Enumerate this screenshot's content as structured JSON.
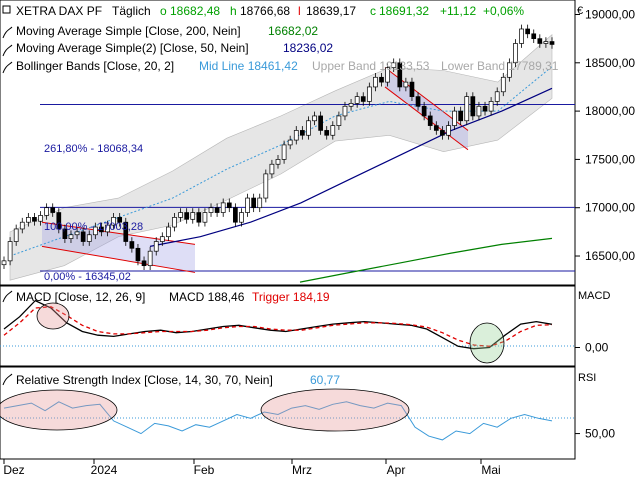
{
  "header": {
    "symbol": "XETRA DAX PF",
    "interval": "Täglich",
    "ohlc": [
      {
        "label": "o",
        "value": "18682,48"
      },
      {
        "label": "h",
        "value": "18766,68"
      },
      {
        "label": "l",
        "value": "18639,17"
      },
      {
        "label": "c",
        "value": "18691,32"
      }
    ],
    "change": "+11,12",
    "change_pct": "+0,06%",
    "currency": "€"
  },
  "legend": {
    "sma200": {
      "label": "Moving Average Simple [Close, 200, Nein]",
      "value": "16682,02"
    },
    "sma50": {
      "label": "Moving Average Simple(2) [Close, 50, Nein]",
      "value": "18236,02"
    },
    "bollinger": {
      "label": "Bollinger Bands [Close, 20, 2]",
      "mid": "Mid Line 18461,42",
      "upper": "Upper Band 19133,53",
      "lower": "Lower Band 17789,31"
    }
  },
  "annotations": {
    "fib_261": "261,80% - 18068,34",
    "fib_100": "100,00% - 17003,28",
    "fib_0": "0,00% - 16345,02"
  },
  "macd_panel": {
    "title": "MACD [Close, 12, 26, 9]",
    "macd_value": "MACD 188,46",
    "trigger_value": "Trigger 184,19",
    "axis_label": "MACD"
  },
  "rsi_panel": {
    "title": "Relative Strength Index [Close, 14, 30, 70, Nein]",
    "value": "60,77",
    "axis_label": "RSI"
  },
  "x_axis": {
    "ticks": [
      "Dez",
      "2024",
      "Feb",
      "Mrz",
      "Apr",
      "Mai"
    ]
  },
  "colors": {
    "up": "#00a000",
    "down": "#e00000",
    "sma200": "#008000",
    "sma50": "#000080",
    "mid": "#3a9ad9",
    "band": "#e6e6e6",
    "hline": "#1a1aa0",
    "macd": "#000000",
    "trigger": "#e00000"
  },
  "chart_data": [
    {
      "type": "candlestick",
      "title": "XETRA DAX PF",
      "ylim": [
        16200,
        19150
      ],
      "yticks": [
        16500,
        17000,
        17500,
        18000,
        18500,
        19000
      ],
      "ytick_labels": [
        "16500,00",
        "17000,00",
        "17500,00",
        "18000,00",
        "18500,00",
        "19000,00"
      ],
      "close": [
        16450,
        16650,
        16780,
        16850,
        16900,
        16860,
        16920,
        17000,
        16950,
        16780,
        16680,
        16720,
        16750,
        16650,
        16720,
        16800,
        16750,
        16820,
        16900,
        16850,
        16650,
        16580,
        16450,
        16400,
        16550,
        16650,
        16700,
        16800,
        16900,
        16950,
        16880,
        16950,
        16850,
        16950,
        17000,
        16950,
        17050,
        17000,
        16850,
        16950,
        17100,
        17000,
        17100,
        17350,
        17450,
        17500,
        17650,
        17700,
        17800,
        17750,
        17900,
        17950,
        17800,
        17750,
        17850,
        17950,
        18050,
        18080,
        18150,
        18100,
        18250,
        18350,
        18300,
        18450,
        18500,
        18250,
        18300,
        18150,
        18050,
        17950,
        17850,
        17800,
        17750,
        17850,
        18000,
        17900,
        18150,
        17950,
        18050,
        18000,
        18100,
        18200,
        18350,
        18500,
        18700,
        18850,
        18800,
        18750,
        18700,
        18720,
        18690
      ],
      "hlines": [
        18068.34,
        17003.28,
        16345.02
      ],
      "sma200": [
        16230,
        16330,
        16430,
        16530,
        16620,
        16682
      ],
      "sma50": [
        16600,
        16700,
        16850,
        17050,
        17300,
        17550,
        17800,
        18000,
        18236
      ],
      "bollinger_mid": [
        16500,
        16700,
        16900,
        17100,
        17400,
        17650,
        17950,
        18100,
        18000,
        18000,
        18461
      ],
      "channels": [
        {
          "from_value": 16850,
          "to_value": 16620,
          "from_lower": 16600,
          "to_lower": 16330
        },
        {
          "from_value": 18450,
          "to_value": 17800,
          "from_lower": 18250,
          "to_lower": 17600
        }
      ]
    },
    {
      "type": "line",
      "title": "MACD [Close, 12, 26, 9]",
      "ylim": [
        -150,
        450
      ],
      "yticks": [
        0
      ],
      "ytick_labels": [
        "0,00"
      ],
      "series": [
        {
          "name": "MACD",
          "values": [
            150,
            250,
            380,
            320,
            200,
            130,
            100,
            90,
            110,
            130,
            140,
            120,
            130,
            150,
            170,
            180,
            160,
            140,
            130,
            150,
            170,
            190,
            200,
            210,
            200,
            190,
            180,
            150,
            80,
            10,
            -10,
            0,
            100,
            190,
            210,
            188
          ]
        },
        {
          "name": "Trigger",
          "values": [
            100,
            200,
            320,
            330,
            260,
            180,
            130,
            110,
            110,
            120,
            130,
            130,
            130,
            140,
            160,
            170,
            170,
            150,
            140,
            140,
            160,
            180,
            190,
            200,
            200,
            195,
            185,
            165,
            120,
            60,
            20,
            10,
            50,
            130,
            180,
            184
          ]
        }
      ]
    },
    {
      "type": "line",
      "title": "Relative Strength Index [Close, 14, 30, 70, Nein]",
      "ylim": [
        30,
        100
      ],
      "yticks": [
        50
      ],
      "ytick_labels": [
        "50,00"
      ],
      "series": [
        {
          "name": "RSI",
          "values": [
            70,
            72,
            74,
            68,
            75,
            70,
            72,
            73,
            60,
            55,
            50,
            58,
            56,
            52,
            57,
            55,
            60,
            65,
            62,
            67,
            65,
            70,
            72,
            69,
            73,
            75,
            72,
            70,
            74,
            72,
            55,
            48,
            45,
            52,
            50,
            58,
            55,
            62,
            65,
            62,
            60
          ]
        }
      ]
    }
  ]
}
